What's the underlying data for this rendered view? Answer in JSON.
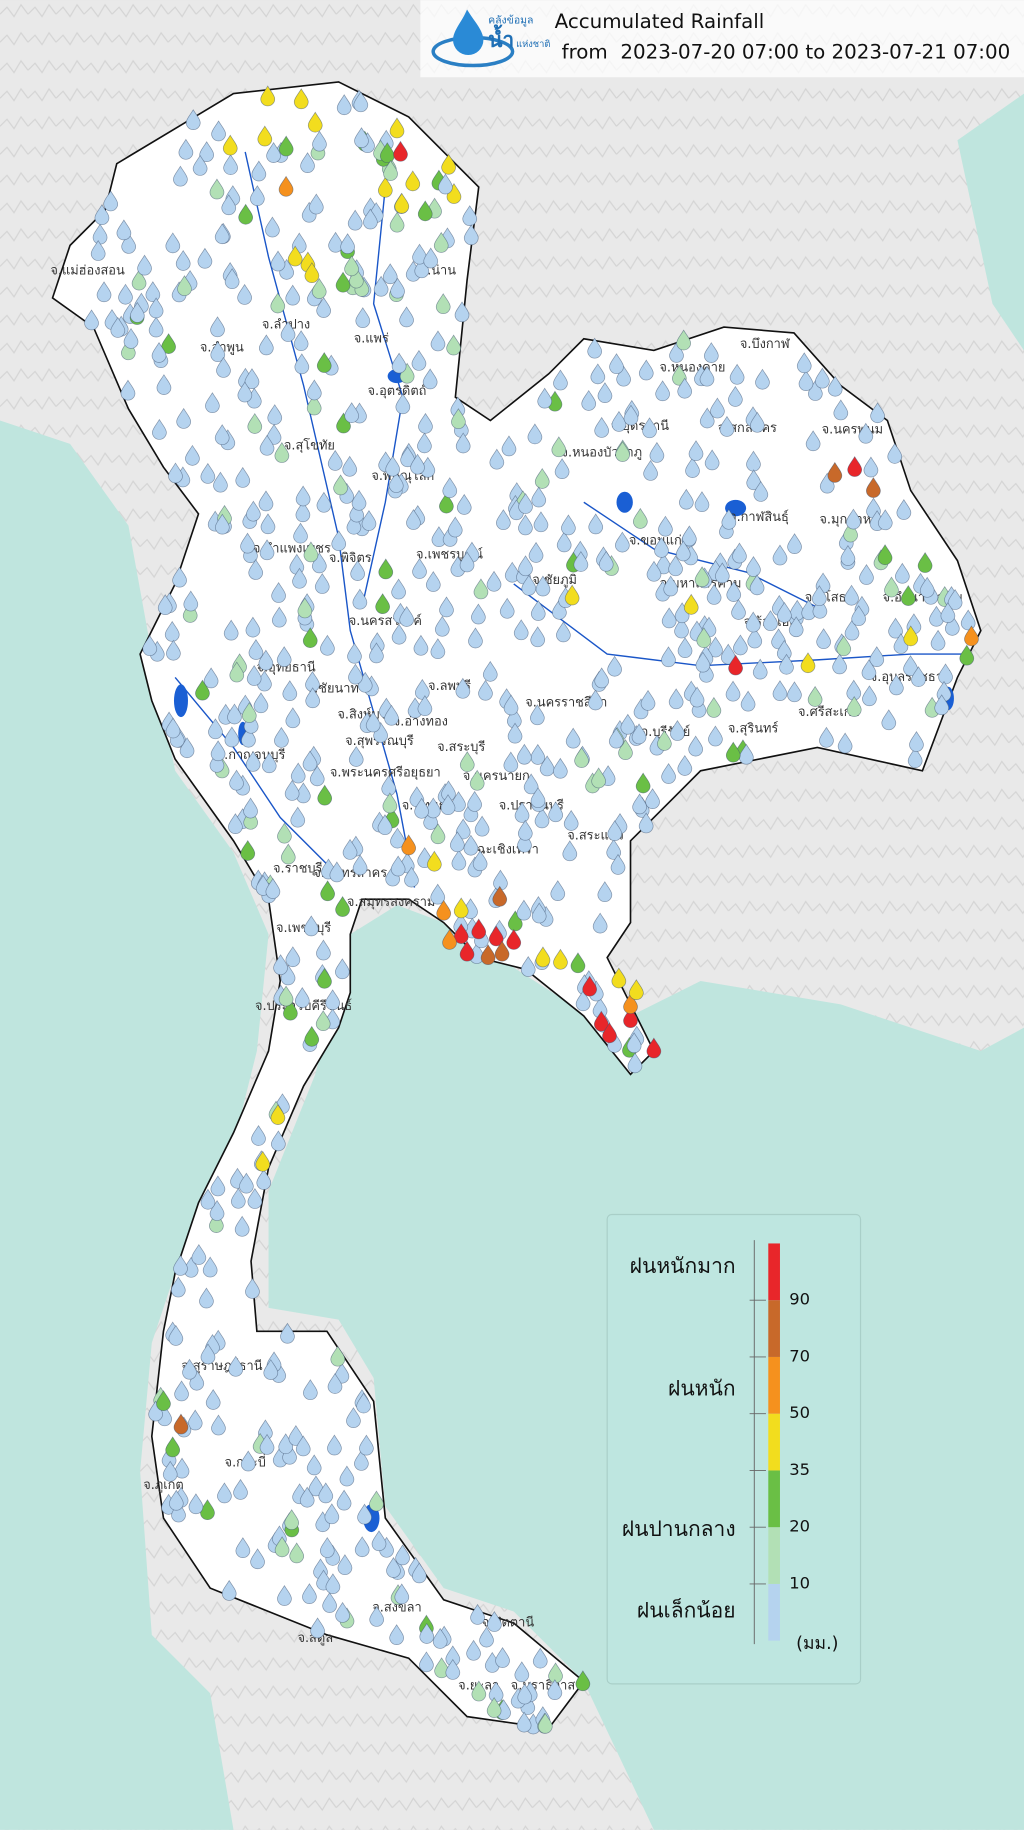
{
  "header": {
    "logo_text": [
      "คลังข้อมูล",
      "น้ำ",
      "แห่งชาติ"
    ],
    "title": "Accumulated Rainfall",
    "subtitle": "from  2023-07-20 07:00 to 2023-07-21 07:00"
  },
  "legend": {
    "bands": [
      "#b5d3ef",
      "#b2e0b5",
      "#6abf45",
      "#f2dd1e",
      "#f5911e",
      "#c8692a",
      "#e8262a"
    ],
    "ticks": [
      10,
      20,
      35,
      50,
      70,
      90
    ],
    "categories": [
      "ฝนหนักมาก",
      "ฝนหนัก",
      "ฝนปานกลาง",
      "ฝนเล็กน้อย"
    ],
    "unit": "(มม.)"
  },
  "province_labels": [
    "จ.แม่ฮ่องสอน",
    "จ.น่าน",
    "จ.ลำปาง",
    "จ.ลำพูน",
    "จ.แพร่",
    "จ.อุตรดิตถ์",
    "จ.สุโขทัย",
    "จ.พิษณุโลก",
    "จ.กำแพงเพชร",
    "จ.พิจิตร",
    "จ.เพชรบูรณ์",
    "จ.นครสวรรค์",
    "จ.อุทัยธานี",
    "จ.ชัยนาท",
    "จ.สิงห์บุรี",
    "จ.ลพบุรี",
    "จ.อ่างทอง",
    "จ.สุพรรณบุรี",
    "จ.กาญจนบุรี",
    "จ.สระบุรี",
    "จ.พระนครศรีอยุธยา",
    "จ.นครนายก",
    "จ.ปทุมธานี",
    "จ.ปราจีนบุรี",
    "จ.สระแก้ว",
    "จ.ฉะเชิงเทรา",
    "จ.ราชบุรี",
    "จ.สมุทรสาคร",
    "จ.สมุทรสงคราม",
    "จ.เพชรบุรี",
    "จ.ประจวบคีรีขันธ์",
    "จ.หนองคาย",
    "จ.บึงกาฬ",
    "จ.อุดรธานี",
    "จ.สกลนคร",
    "จ.นครพนม",
    "จ.หนองบัวลำภู",
    "จ.กาฬสินธุ์",
    "จ.มุกดาหาร",
    "จ.ขอนแก่น",
    "จ.ชัยภูมิ",
    "จ.มหาสารคาม",
    "จ.ยโสธร",
    "จ.อำนาจเจริญ",
    "จ.ร้อยเอ็ด",
    "จ.อุบลราชธานี",
    "จ.นครราชสีมา",
    "จ.บุรีรัมย์",
    "จ.สุรินทร์",
    "จ.ศรีสะเกษ",
    "จ.สุราษฎร์ธานี",
    "จ.ภูเก็ต",
    "จ.กระบี่",
    "จ.สงขลา",
    "จ.สตูล",
    "จ.ปัตตานี",
    "จ.ยะลา",
    "จ.นราธิวาส"
  ]
}
